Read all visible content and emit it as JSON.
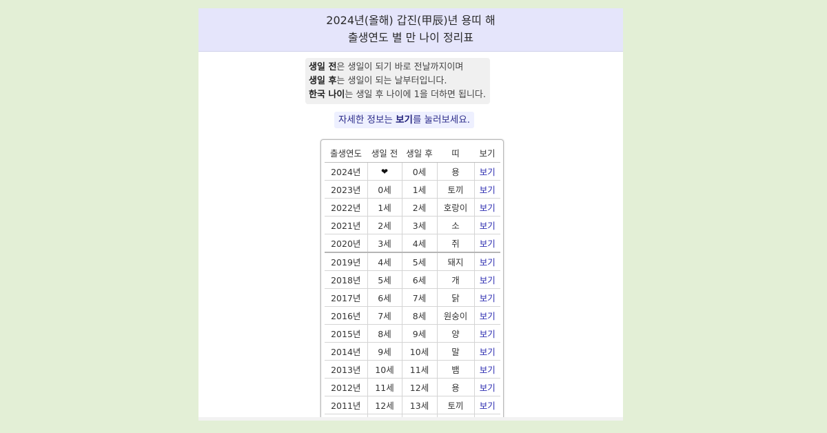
{
  "header": {
    "line1": "2024년(올해) 갑진(甲辰)년 용띠 해",
    "line2": "출생연도 별 만 나이 정리표"
  },
  "note": {
    "l1_bold": "생일 전",
    "l1_rest": "은 생일이 되기 바로 전날까지이며",
    "l2_bold": "생일 후",
    "l2_rest": "는 생일이 되는 날부터입니다.",
    "l3_bold": "한국 나이",
    "l3_rest": "는 생일 후 나이에 1을 더하면 됩니다."
  },
  "hint": {
    "pre": "자세한 정보는 ",
    "bold": "보기",
    "post": "를 눌러보세요."
  },
  "table": {
    "headers": [
      "출생연도",
      "생일 전",
      "생일 후",
      "띠",
      "보기"
    ],
    "rows": [
      [
        "2024년",
        "❤",
        "0세",
        "용",
        "보기"
      ],
      [
        "2023년",
        "0세",
        "1세",
        "토끼",
        "보기"
      ],
      [
        "2022년",
        "1세",
        "2세",
        "호랑이",
        "보기"
      ],
      [
        "2021년",
        "2세",
        "3세",
        "소",
        "보기"
      ],
      [
        "2020년",
        "3세",
        "4세",
        "쥐",
        "보기"
      ],
      [
        "2019년",
        "4세",
        "5세",
        "돼지",
        "보기"
      ],
      [
        "2018년",
        "5세",
        "6세",
        "개",
        "보기"
      ],
      [
        "2017년",
        "6세",
        "7세",
        "닭",
        "보기"
      ],
      [
        "2016년",
        "7세",
        "8세",
        "원숭이",
        "보기"
      ],
      [
        "2015년",
        "8세",
        "9세",
        "양",
        "보기"
      ],
      [
        "2014년",
        "9세",
        "10세",
        "말",
        "보기"
      ],
      [
        "2013년",
        "10세",
        "11세",
        "뱀",
        "보기"
      ],
      [
        "2012년",
        "11세",
        "12세",
        "용",
        "보기"
      ],
      [
        "2011년",
        "12세",
        "13세",
        "토끼",
        "보기"
      ],
      [
        "",
        "",
        "",
        "",
        ""
      ]
    ]
  }
}
